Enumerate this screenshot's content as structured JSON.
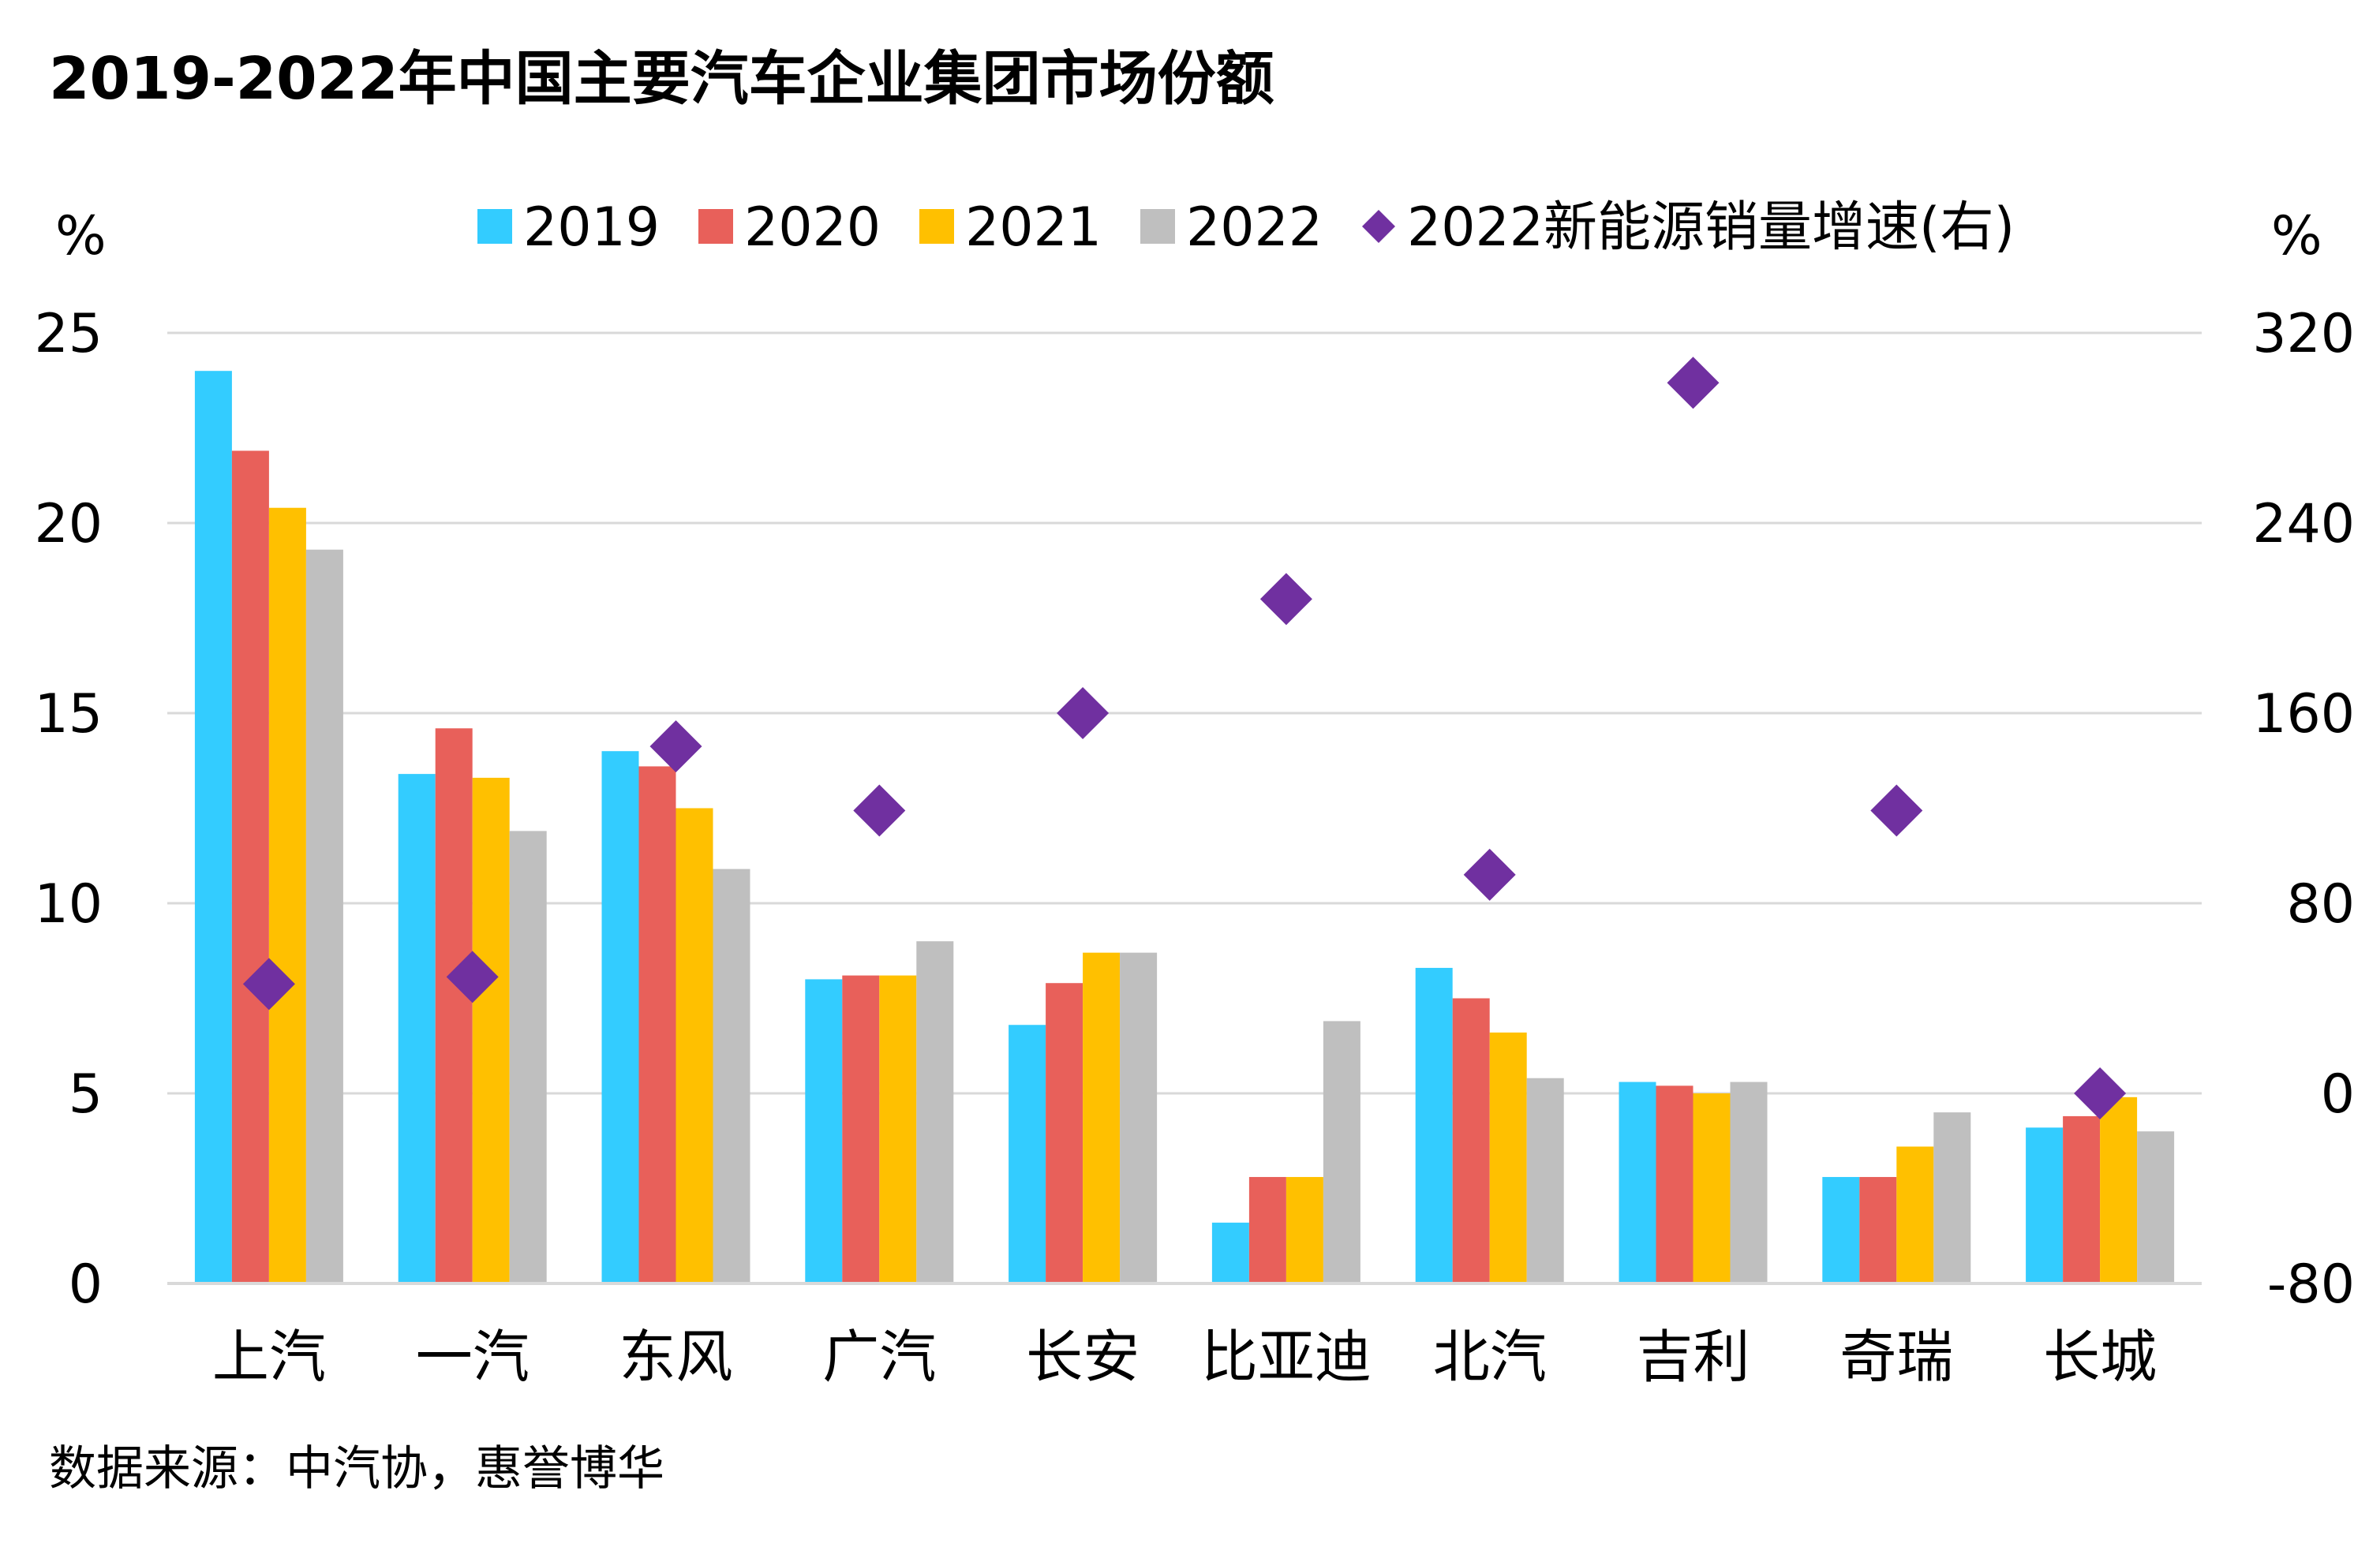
{
  "chart_data": {
    "type": "bar",
    "title": "2019-2022年中国主要汽车企业集团市场份额",
    "source": "数据来源：中汽协，惠誉博华",
    "left_unit": "%",
    "right_unit": "%",
    "categories": [
      "上汽",
      "一汽",
      "东风",
      "广汽",
      "长安",
      "比亚迪",
      "北汽",
      "吉利",
      "奇瑞",
      "长城"
    ],
    "series": [
      {
        "name": "2019",
        "type": "bar",
        "axis": "left",
        "color": "#33ccff",
        "values": [
          24.0,
          13.4,
          14.0,
          8.0,
          6.8,
          1.6,
          8.3,
          5.3,
          2.8,
          4.1
        ]
      },
      {
        "name": "2020",
        "type": "bar",
        "axis": "left",
        "color": "#e8605a",
        "values": [
          21.9,
          14.6,
          13.6,
          8.1,
          7.9,
          2.8,
          7.5,
          5.2,
          2.8,
          4.4
        ]
      },
      {
        "name": "2021",
        "type": "bar",
        "axis": "left",
        "color": "#ffc000",
        "values": [
          20.4,
          13.3,
          12.5,
          8.1,
          8.7,
          2.8,
          6.6,
          5.0,
          3.6,
          4.9
        ]
      },
      {
        "name": "2022",
        "type": "bar",
        "axis": "left",
        "color": "#bfbfbf",
        "values": [
          19.3,
          11.9,
          10.9,
          9.0,
          8.7,
          6.9,
          5.4,
          5.3,
          4.5,
          4.0
        ]
      },
      {
        "name": "2022新能源销量增速(右)",
        "type": "scatter",
        "marker": "diamond",
        "axis": "right",
        "color": "#7030a0",
        "values": [
          46,
          49,
          146,
          119,
          160,
          208,
          92,
          299,
          119,
          0
        ]
      }
    ],
    "y_left": {
      "min": 0,
      "max": 25,
      "ticks": [
        0,
        5,
        10,
        15,
        20,
        25
      ]
    },
    "y_right": {
      "min": -80,
      "max": 320,
      "ticks": [
        -80,
        0,
        80,
        160,
        240,
        320
      ]
    },
    "grid": true,
    "legend_position": "top"
  }
}
